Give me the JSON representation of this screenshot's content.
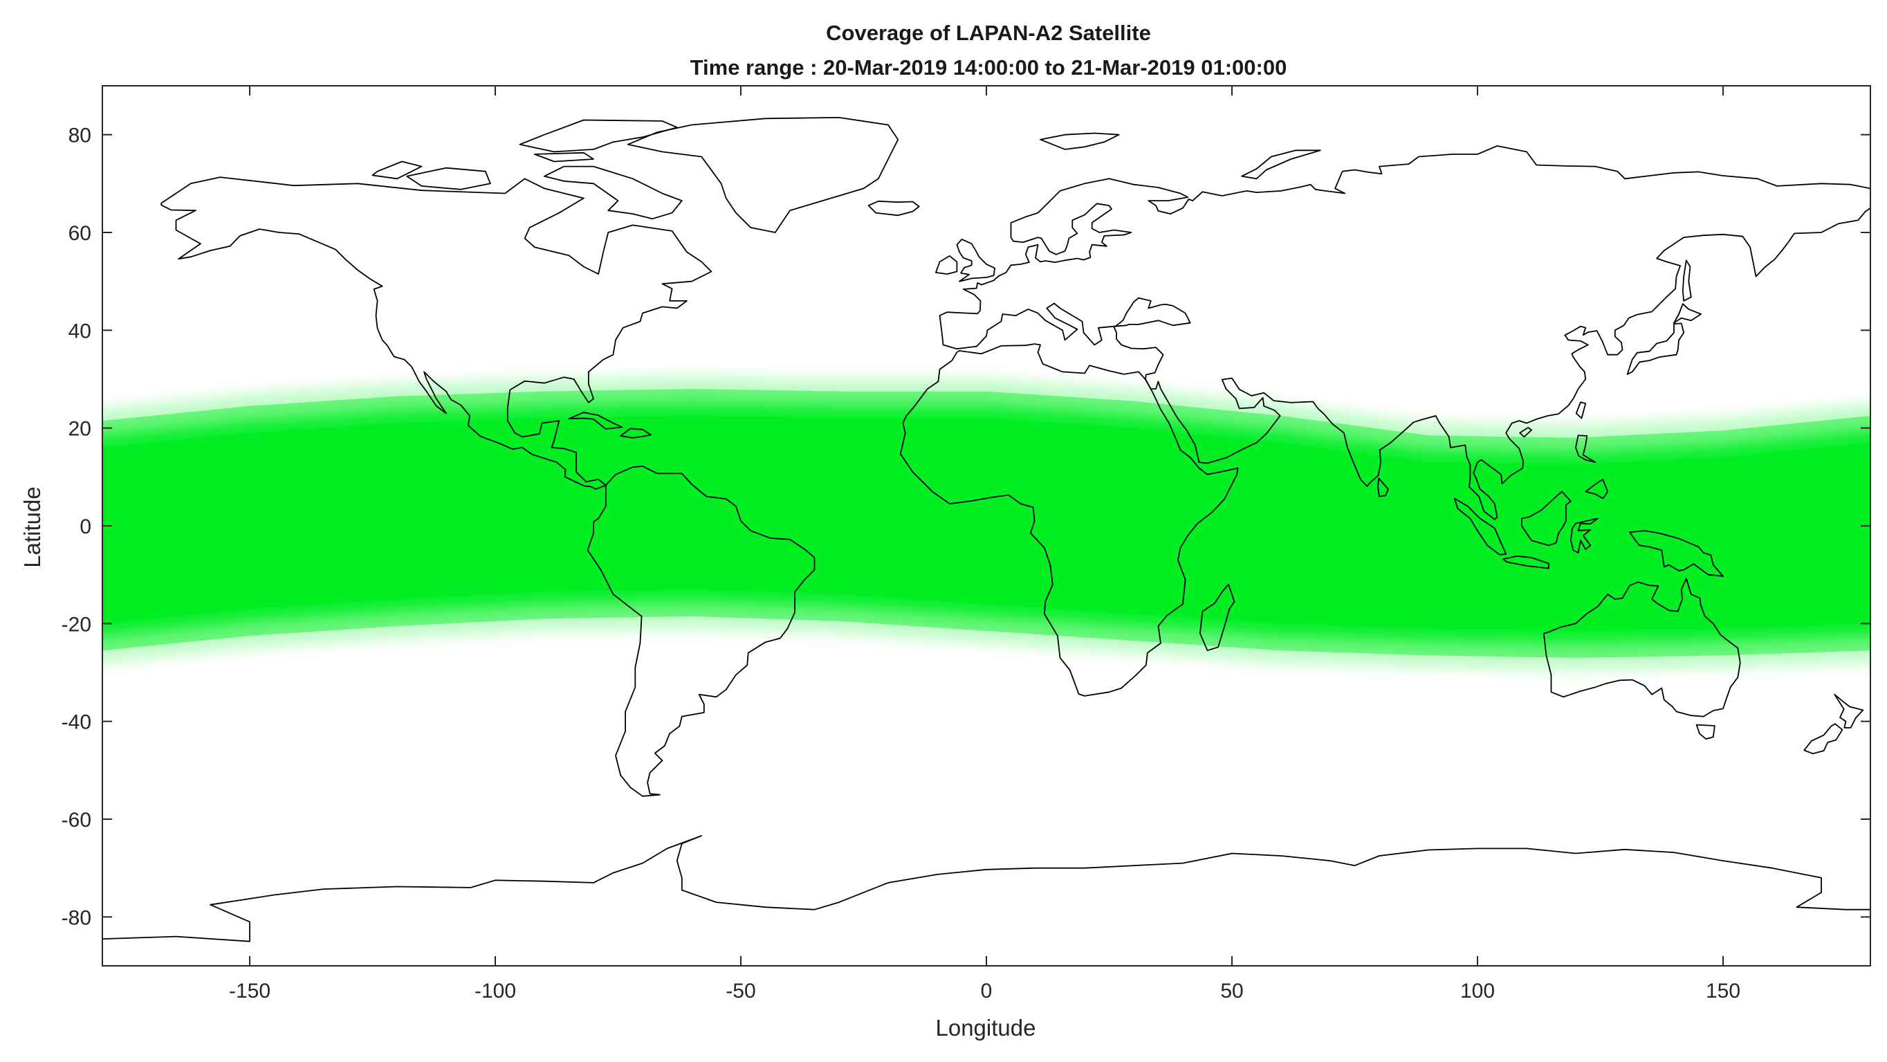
{
  "map": {
    "title": "Coverage of LAPAN-A2 Satellite",
    "subtitle": "Time range : 20-Mar-2019 14:00:00 to 21-Mar-2019 01:00:00",
    "xlabel": "Longitude",
    "ylabel": "Latitude",
    "projection": "equirectangular",
    "xlim": [
      -180,
      180
    ],
    "ylim": [
      -90,
      90
    ],
    "xticks": [
      -150,
      -100,
      -50,
      0,
      50,
      100,
      150
    ],
    "yticks": [
      80,
      60,
      40,
      20,
      0,
      -20,
      -40,
      -60,
      -80
    ],
    "grid": false,
    "colors": {
      "coverage": "#00ee22",
      "coastline": "#000000",
      "background": "#ffffff"
    },
    "coverage_band": {
      "description_units": "degrees latitude",
      "north_edge": [
        [
          -180,
          24
        ],
        [
          -150,
          27
        ],
        [
          -120,
          29
        ],
        [
          -90,
          30
        ],
        [
          -60,
          30.5
        ],
        [
          -30,
          30
        ],
        [
          0,
          30
        ],
        [
          30,
          28
        ],
        [
          60,
          25
        ],
        [
          90,
          21
        ],
        [
          120,
          20.5
        ],
        [
          150,
          22
        ],
        [
          180,
          25
        ]
      ],
      "south_edge": [
        [
          -180,
          -28
        ],
        [
          -150,
          -25
        ],
        [
          -120,
          -23
        ],
        [
          -90,
          -21.5
        ],
        [
          -60,
          -21
        ],
        [
          -30,
          -22
        ],
        [
          0,
          -24
        ],
        [
          30,
          -26
        ],
        [
          60,
          -28
        ],
        [
          90,
          -29
        ],
        [
          120,
          -29.5
        ],
        [
          150,
          -29
        ],
        [
          180,
          -28
        ]
      ]
    }
  }
}
